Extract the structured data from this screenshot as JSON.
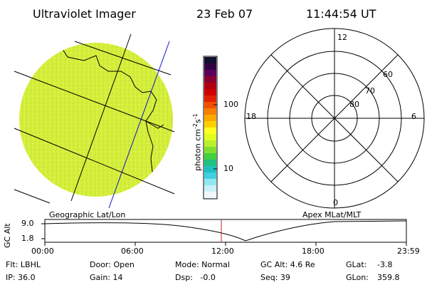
{
  "header": {
    "instrument": "Ultraviolet Imager",
    "date": "23 Feb 07",
    "time": "11:44:54 UT"
  },
  "colorbar": {
    "unit_label": "photon cm",
    "unit_exp1": "-2",
    "unit_s": "s",
    "unit_exp2": "-1",
    "tick_100": "100",
    "tick_10": "10",
    "colors_top_to_bottom": [
      "#101030",
      "#300040",
      "#5a005a",
      "#8a0030",
      "#b00010",
      "#d00000",
      "#e02000",
      "#f05000",
      "#f88000",
      "#ffa800",
      "#ffd000",
      "#ffff20",
      "#e0ff20",
      "#b8f030",
      "#80e030",
      "#40d040",
      "#20c080",
      "#20c0c0",
      "#40d0e0",
      "#90e8f0",
      "#c8f0f8",
      "#eef8fc"
    ]
  },
  "image_label": "Geographic Lat/Lon",
  "polar": {
    "label": "Apex MLat/MLT",
    "mlt_top": "12",
    "mlt_left": "18",
    "mlt_right": "6",
    "mlt_bottom": "0",
    "lat_60": "60",
    "lat_70": "70",
    "lat_80": "80"
  },
  "timeline": {
    "ylabel": "GC Alt",
    "y_top": "9.0",
    "y_bottom": "1.8",
    "ticks": [
      "00:00",
      "06:00",
      "12:00",
      "18:00",
      "23:59"
    ],
    "cursor_time": "11:44:54"
  },
  "info": {
    "flt": "Flt: LBHL",
    "door": "Door: Open",
    "mode": "Mode: Normal",
    "gc_alt": "GC Alt: 4.6 Re",
    "glat_label": "GLat:",
    "glat_value": "-3.8",
    "ip": "IP: 36.0",
    "gain": "Gain: 14",
    "dsp": "Dsp:   -0.0",
    "seq": "Seq: 39",
    "glon_label": "GLon:",
    "glon_value": "359.8"
  }
}
